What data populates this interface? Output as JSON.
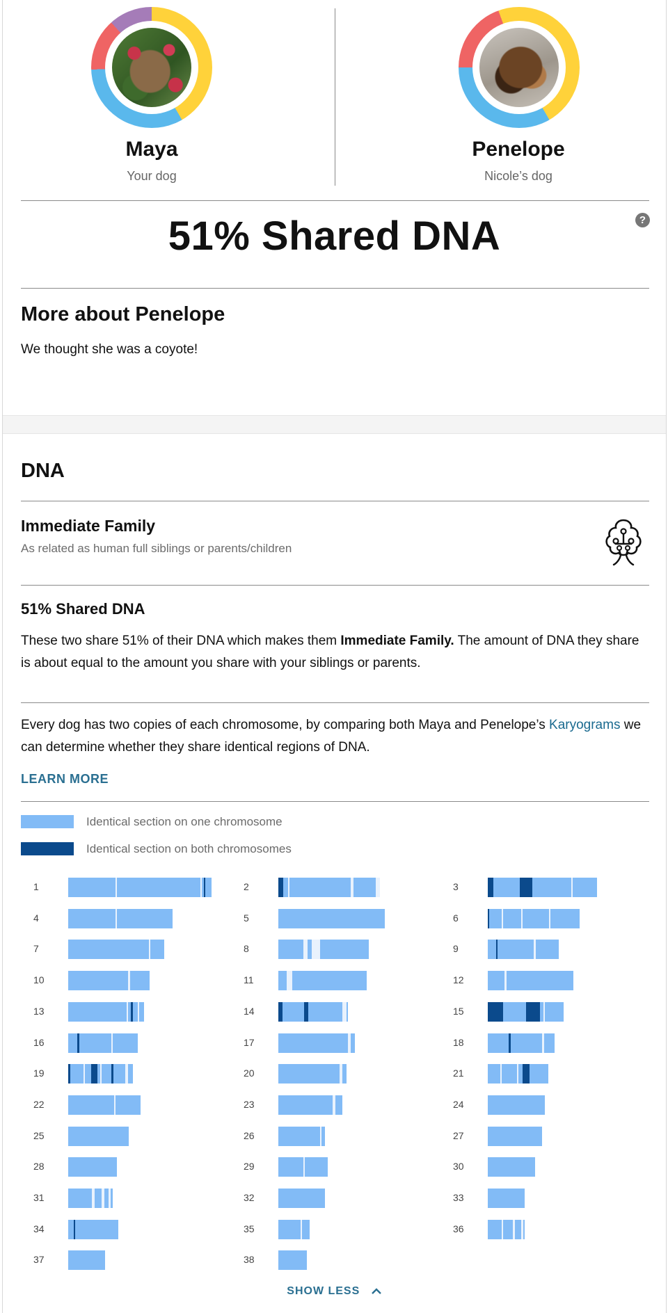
{
  "dogs": {
    "left": {
      "name": "Maya",
      "subtitle": "Your dog"
    },
    "right": {
      "name": "Penelope",
      "subtitle": "Nicole’s dog"
    }
  },
  "headline": "51% Shared DNA",
  "help_icon": "?",
  "about": {
    "heading": "More about Penelope",
    "text": "We thought she was a coyote!"
  },
  "dna": {
    "heading": "DNA",
    "relationship": {
      "title": "Immediate Family",
      "subtitle": "As related as human full siblings or parents/children",
      "icon": "family-tree-icon"
    },
    "shared": {
      "title": "51% Shared DNA",
      "text_before": "These two share 51% of their DNA which makes them ",
      "text_bold": "Immediate Family.",
      "text_after": " The amount of DNA they share is about equal to the amount you share with your siblings or parents."
    },
    "explain": {
      "text_before": "Every dog has two copies of each chromosome, by comparing both Maya and Penelope’s ",
      "link_text": "Karyograms",
      "text_after": " we can determine whether they share identical regions of DNA."
    },
    "learn_more": "LEARN MORE",
    "legend": {
      "one": {
        "label": "Identical section on one chromosome",
        "color": "#82bbf6"
      },
      "both": {
        "label": "Identical section on both chromosomes",
        "color": "#0b4a8c"
      }
    },
    "chromosomes": [
      {
        "label": "1"
      },
      {
        "label": "2"
      },
      {
        "label": "3"
      },
      {
        "label": "4"
      },
      {
        "label": "5"
      },
      {
        "label": "6"
      },
      {
        "label": "7"
      },
      {
        "label": "8"
      },
      {
        "label": "9"
      },
      {
        "label": "10"
      },
      {
        "label": "11"
      },
      {
        "label": "12"
      },
      {
        "label": "13"
      },
      {
        "label": "14"
      },
      {
        "label": "15"
      },
      {
        "label": "16"
      },
      {
        "label": "17"
      },
      {
        "label": "18"
      },
      {
        "label": "19"
      },
      {
        "label": "20"
      },
      {
        "label": "21"
      },
      {
        "label": "22"
      },
      {
        "label": "23"
      },
      {
        "label": "24"
      },
      {
        "label": "25"
      },
      {
        "label": "26"
      },
      {
        "label": "27"
      },
      {
        "label": "28"
      },
      {
        "label": "29"
      },
      {
        "label": "30"
      },
      {
        "label": "31"
      },
      {
        "label": "32"
      },
      {
        "label": "33"
      },
      {
        "label": "34"
      },
      {
        "label": "35"
      },
      {
        "label": "36"
      },
      {
        "label": "37"
      },
      {
        "label": "38"
      }
    ],
    "show_less": "SHOW LESS"
  }
}
